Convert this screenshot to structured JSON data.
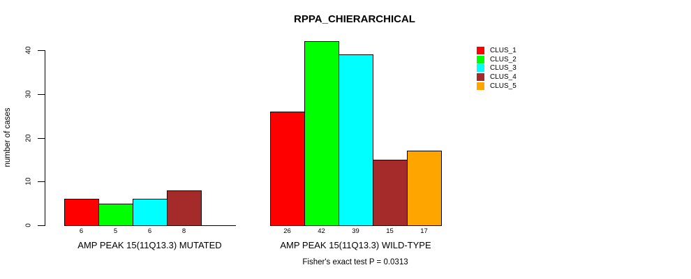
{
  "title": "RPPA_CHIERARCHICAL",
  "ylabel": "number of cases",
  "footer": "Fisher's exact test P = 0.0313",
  "legend": {
    "items": [
      {
        "label": "CLUS_1",
        "color": "#FF0000"
      },
      {
        "label": "CLUS_2",
        "color": "#00FF00"
      },
      {
        "label": "CLUS_3",
        "color": "#00FFFF"
      },
      {
        "label": "CLUS_4",
        "color": "#A52A2A"
      },
      {
        "label": "CLUS_5",
        "color": "#FFA500"
      }
    ]
  },
  "chart_data": {
    "type": "bar",
    "title": "RPPA_CHIERARCHICAL",
    "xlabel": "",
    "ylabel": "number of cases",
    "ylim": [
      0,
      40
    ],
    "yticks": [
      0,
      10,
      20,
      30,
      40
    ],
    "grid": false,
    "legend_position": "right",
    "categories": [
      "AMP PEAK 15(11Q13.3) MUTATED",
      "AMP PEAK 15(11Q13.3) WILD-TYPE"
    ],
    "series": [
      {
        "name": "CLUS_1",
        "color": "#FF0000",
        "values": [
          6,
          26
        ]
      },
      {
        "name": "CLUS_2",
        "color": "#00FF00",
        "values": [
          5,
          42
        ]
      },
      {
        "name": "CLUS_3",
        "color": "#00FFFF",
        "values": [
          6,
          39
        ]
      },
      {
        "name": "CLUS_4",
        "color": "#A52A2A",
        "values": [
          8,
          15
        ]
      },
      {
        "name": "CLUS_5",
        "color": "#FFA500",
        "values": [
          0,
          17
        ]
      }
    ],
    "bar_value_labels_shown": true,
    "annotation": "Fisher's exact test P = 0.0313"
  }
}
